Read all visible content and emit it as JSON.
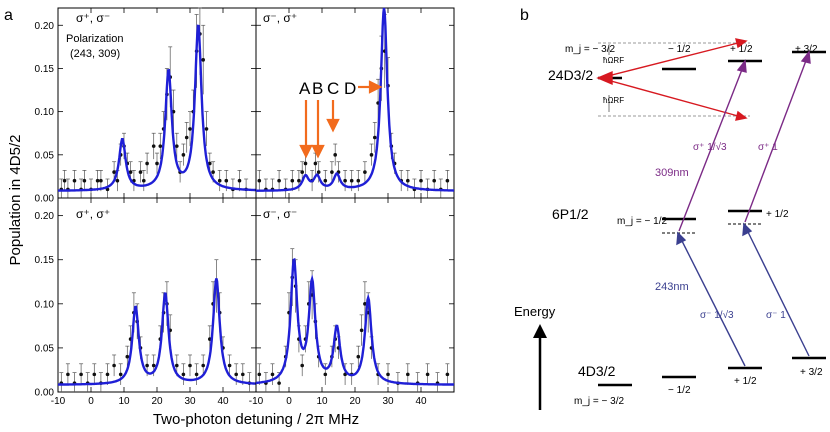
{
  "figure": {
    "panel_a_label": "a",
    "panel_b_label": "b"
  },
  "colors": {
    "fit": "#1f1fd6",
    "data": "#111111",
    "arrow_orange": "#f26b1d",
    "red": "#d71920",
    "purple": "#7b2a86",
    "navy": "#3a3f8f"
  },
  "chart_data": [
    {
      "type": "scatter",
      "panel": "top-left",
      "title": "σ⁺, σ⁻",
      "annotation": [
        "Polarization",
        "(243, 309)"
      ],
      "xlabel": "Two-photon detuning / 2π MHz",
      "ylabel": "Population in 4D5/2",
      "xlim": [
        -10,
        50
      ],
      "ylim": [
        0,
        0.22
      ],
      "xticks": [
        "-10",
        "0",
        "10",
        "20",
        "30",
        "40"
      ],
      "yticks": [
        "0.00",
        "0.05",
        "0.10",
        "0.15",
        "0.20"
      ],
      "fit_peaks": [
        {
          "x": 9.5,
          "y": 0.067
        },
        {
          "x": 23.5,
          "y": 0.145
        },
        {
          "x": 32.5,
          "y": 0.198
        }
      ],
      "baseline": 0.008,
      "points": [
        [
          -9,
          0.01
        ],
        [
          -8,
          0.02
        ],
        [
          -7,
          0.01
        ],
        [
          -5,
          0.02
        ],
        [
          -3,
          0.01
        ],
        [
          -2,
          0.02
        ],
        [
          0,
          0.01
        ],
        [
          2,
          0.02
        ],
        [
          3,
          0.02
        ],
        [
          5,
          0.01
        ],
        [
          7,
          0.03
        ],
        [
          8,
          0.02
        ],
        [
          9,
          0.05
        ],
        [
          10,
          0.06
        ],
        [
          11,
          0.04
        ],
        [
          12,
          0.03
        ],
        [
          13,
          0.02
        ],
        [
          15,
          0.03
        ],
        [
          16,
          0.02
        ],
        [
          17,
          0.04
        ],
        [
          19,
          0.06
        ],
        [
          20,
          0.04
        ],
        [
          21,
          0.06
        ],
        [
          22,
          0.08
        ],
        [
          23,
          0.12
        ],
        [
          24,
          0.14
        ],
        [
          25,
          0.1
        ],
        [
          26,
          0.06
        ],
        [
          27,
          0.03
        ],
        [
          28,
          0.05
        ],
        [
          29,
          0.07
        ],
        [
          30,
          0.08
        ],
        [
          31,
          0.1
        ],
        [
          32,
          0.17
        ],
        [
          33,
          0.19
        ],
        [
          34,
          0.16
        ],
        [
          35,
          0.08
        ],
        [
          36,
          0.04
        ],
        [
          37,
          0.03
        ],
        [
          39,
          0.02
        ],
        [
          41,
          0.02
        ],
        [
          43,
          0.01
        ],
        [
          45,
          0.02
        ],
        [
          47,
          0.01
        ]
      ]
    },
    {
      "type": "scatter",
      "panel": "top-right",
      "title": "σ⁻, σ⁺",
      "xlim": [
        -10,
        50
      ],
      "ylim": [
        0,
        0.22
      ],
      "fit_peaks": [
        {
          "x": 5,
          "y": 0.024
        },
        {
          "x": 8.5,
          "y": 0.024
        },
        {
          "x": 14.5,
          "y": 0.026
        },
        {
          "x": 28.8,
          "y": 0.22
        }
      ],
      "baseline": 0.008,
      "annotations": {
        "A": "A",
        "B": "B",
        "C": "C",
        "D": "D"
      },
      "points": [
        [
          -9,
          0.02
        ],
        [
          -7,
          0.01
        ],
        [
          -5,
          0.01
        ],
        [
          -3,
          0.02
        ],
        [
          -1,
          0.01
        ],
        [
          1,
          0.02
        ],
        [
          3,
          0.02
        ],
        [
          4,
          0.03
        ],
        [
          5,
          0.04
        ],
        [
          7,
          0.02
        ],
        [
          8,
          0.04
        ],
        [
          9,
          0.03
        ],
        [
          11,
          0.02
        ],
        [
          13,
          0.03
        ],
        [
          14,
          0.05
        ],
        [
          15,
          0.03
        ],
        [
          17,
          0.02
        ],
        [
          19,
          0.02
        ],
        [
          21,
          0.02
        ],
        [
          23,
          0.03
        ],
        [
          25,
          0.05
        ],
        [
          26,
          0.07
        ],
        [
          27,
          0.11
        ],
        [
          28,
          0.15
        ],
        [
          29,
          0.17
        ],
        [
          30,
          0.13
        ],
        [
          31,
          0.06
        ],
        [
          32,
          0.04
        ],
        [
          34,
          0.02
        ],
        [
          36,
          0.02
        ],
        [
          38,
          0.01
        ],
        [
          40,
          0.02
        ],
        [
          42,
          0.01
        ],
        [
          44,
          0.02
        ],
        [
          46,
          0.01
        ],
        [
          48,
          0.02
        ]
      ]
    },
    {
      "type": "scatter",
      "panel": "bottom-left",
      "title": "σ⁺, σ⁺",
      "xlim": [
        -10,
        50
      ],
      "ylim": [
        0,
        0.22
      ],
      "fit_peaks": [
        {
          "x": 13.5,
          "y": 0.095
        },
        {
          "x": 22.5,
          "y": 0.11
        },
        {
          "x": 38,
          "y": 0.128
        }
      ],
      "baseline": 0.008,
      "points": [
        [
          -9,
          0.01
        ],
        [
          -7,
          0.02
        ],
        [
          -5,
          0.01
        ],
        [
          -3,
          0.02
        ],
        [
          -1,
          0.01
        ],
        [
          1,
          0.02
        ],
        [
          3,
          0.01
        ],
        [
          5,
          0.02
        ],
        [
          7,
          0.03
        ],
        [
          9,
          0.02
        ],
        [
          11,
          0.04
        ],
        [
          12,
          0.06
        ],
        [
          13,
          0.09
        ],
        [
          14,
          0.08
        ],
        [
          15,
          0.05
        ],
        [
          17,
          0.03
        ],
        [
          19,
          0.03
        ],
        [
          21,
          0.06
        ],
        [
          22,
          0.09
        ],
        [
          23,
          0.1
        ],
        [
          24,
          0.07
        ],
        [
          26,
          0.03
        ],
        [
          28,
          0.02
        ],
        [
          30,
          0.03
        ],
        [
          32,
          0.02
        ],
        [
          34,
          0.03
        ],
        [
          36,
          0.06
        ],
        [
          37,
          0.1
        ],
        [
          38,
          0.12
        ],
        [
          39,
          0.09
        ],
        [
          40,
          0.05
        ],
        [
          42,
          0.03
        ],
        [
          44,
          0.02
        ],
        [
          46,
          0.02
        ],
        [
          48,
          0.01
        ]
      ]
    },
    {
      "type": "scatter",
      "panel": "bottom-right",
      "title": "σ⁻, σ⁻",
      "xlim": [
        -10,
        50
      ],
      "ylim": [
        0,
        0.22
      ],
      "fit_peaks": [
        {
          "x": 1.5,
          "y": 0.145
        },
        {
          "x": 7,
          "y": 0.12
        },
        {
          "x": 14.5,
          "y": 0.07
        },
        {
          "x": 24,
          "y": 0.105
        }
      ],
      "baseline": 0.008,
      "points": [
        [
          -9,
          0.02
        ],
        [
          -7,
          0.01
        ],
        [
          -5,
          0.02
        ],
        [
          -3,
          0.01
        ],
        [
          -1,
          0.04
        ],
        [
          0,
          0.09
        ],
        [
          1,
          0.13
        ],
        [
          2,
          0.12
        ],
        [
          3,
          0.06
        ],
        [
          4,
          0.03
        ],
        [
          5,
          0.06
        ],
        [
          6,
          0.1
        ],
        [
          7,
          0.11
        ],
        [
          8,
          0.08
        ],
        [
          9,
          0.04
        ],
        [
          11,
          0.02
        ],
        [
          13,
          0.04
        ],
        [
          14,
          0.06
        ],
        [
          15,
          0.05
        ],
        [
          17,
          0.02
        ],
        [
          19,
          0.02
        ],
        [
          21,
          0.04
        ],
        [
          22,
          0.07
        ],
        [
          23,
          0.1
        ],
        [
          24,
          0.09
        ],
        [
          25,
          0.05
        ],
        [
          27,
          0.02
        ],
        [
          30,
          0.02
        ],
        [
          33,
          0.01
        ],
        [
          36,
          0.02
        ],
        [
          39,
          0.01
        ],
        [
          42,
          0.02
        ],
        [
          45,
          0.01
        ],
        [
          48,
          0.02
        ]
      ]
    }
  ],
  "diagram": {
    "top_mj_labels": [
      "m_j = − 3/2",
      "− 1/2",
      "+ 1/2",
      "+ 3/2"
    ],
    "state_24D": "24D3/2",
    "state_6P": "6P1/2",
    "state_4D": "4D3/2",
    "rf_label": "ħΩRF",
    "label_309": "309nm",
    "label_243": "243nm",
    "sigma_plus_left": "σ⁺ 1/√3",
    "sigma_plus_right": "σ⁺ 1",
    "sigma_minus_left": "σ⁻ 1/√3",
    "sigma_minus_right": "σ⁻ 1",
    "mid_mj_left": "m_j = − 1/2",
    "mid_mj_right": "+ 1/2",
    "bottom_mj_labels": [
      "m_j = − 3/2",
      "− 1/2",
      "+ 1/2",
      "+ 3/2"
    ],
    "energy_label": "Energy"
  }
}
